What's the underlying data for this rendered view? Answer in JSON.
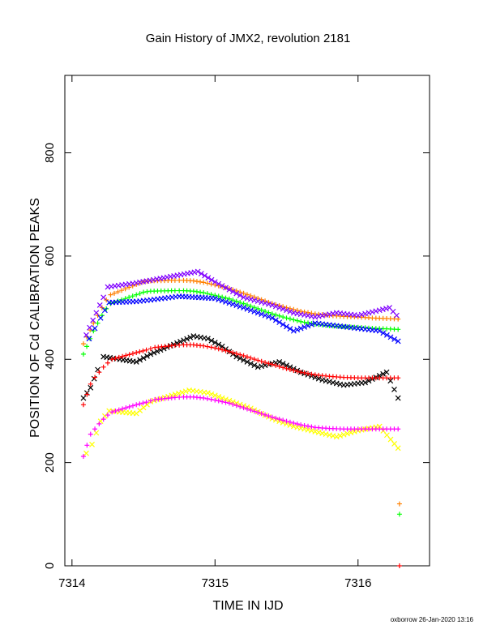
{
  "chart_data": {
    "type": "scatter",
    "title": "Gain History of JMX2, revolution 2181",
    "xlabel": "TIME IN IJD",
    "ylabel": "POSITION OF Cd CALIBRATION PEAKS",
    "xlim": [
      7313.95,
      7316.5
    ],
    "ylim": [
      0,
      950
    ],
    "x_ticks": [
      "7314",
      "7315",
      "7316"
    ],
    "y_ticks": [
      "0",
      "200",
      "400",
      "600",
      "800"
    ],
    "grid": false,
    "footer": "oxborrow 26-Jan-2020 13:16",
    "series": [
      {
        "color": "#ff8000",
        "marker": "plus",
        "points": [
          [
            7314.08,
            430
          ],
          [
            7314.15,
            470
          ],
          [
            7314.18,
            485
          ],
          [
            7314.21,
            500
          ],
          [
            7314.24,
            515
          ],
          [
            7314.27,
            525
          ],
          [
            7314.45,
            545
          ],
          [
            7314.5,
            550
          ],
          [
            7314.55,
            552
          ],
          [
            7314.72,
            553
          ],
          [
            7314.78,
            553
          ],
          [
            7314.85,
            552
          ],
          [
            7314.92,
            549
          ],
          [
            7315.0,
            544
          ],
          [
            7315.1,
            537
          ],
          [
            7315.2,
            528
          ],
          [
            7315.3,
            518
          ],
          [
            7315.4,
            508
          ],
          [
            7315.5,
            500
          ],
          [
            7315.6,
            493
          ],
          [
            7315.7,
            488
          ],
          [
            7315.8,
            485
          ],
          [
            7315.9,
            483
          ],
          [
            7316.0,
            482
          ],
          [
            7316.1,
            480
          ],
          [
            7316.2,
            479
          ],
          [
            7316.28,
            478
          ],
          [
            7316.29,
            120
          ]
        ]
      },
      {
        "color": "#8000ff",
        "marker": "x",
        "points": [
          [
            7314.1,
            447
          ],
          [
            7314.17,
            490
          ],
          [
            7314.22,
            520
          ],
          [
            7314.25,
            540
          ],
          [
            7314.45,
            548
          ],
          [
            7314.88,
            570
          ],
          [
            7315.0,
            550
          ],
          [
            7315.2,
            520
          ],
          [
            7315.4,
            505
          ],
          [
            7315.55,
            490
          ],
          [
            7315.7,
            482
          ],
          [
            7315.85,
            490
          ],
          [
            7316.0,
            485
          ],
          [
            7316.15,
            495
          ],
          [
            7316.22,
            500
          ],
          [
            7316.27,
            485
          ]
        ]
      },
      {
        "color": "#00ff00",
        "marker": "plus",
        "points": [
          [
            7314.08,
            410
          ],
          [
            7314.15,
            455
          ],
          [
            7314.18,
            470
          ],
          [
            7314.21,
            485
          ],
          [
            7314.24,
            498
          ],
          [
            7314.27,
            508
          ],
          [
            7314.45,
            525
          ],
          [
            7314.5,
            530
          ],
          [
            7314.55,
            532
          ],
          [
            7314.72,
            533
          ],
          [
            7314.78,
            533
          ],
          [
            7314.85,
            532
          ],
          [
            7314.92,
            529
          ],
          [
            7315.0,
            524
          ],
          [
            7315.1,
            517
          ],
          [
            7315.2,
            508
          ],
          [
            7315.3,
            498
          ],
          [
            7315.4,
            488
          ],
          [
            7315.5,
            480
          ],
          [
            7315.6,
            473
          ],
          [
            7315.7,
            468
          ],
          [
            7315.8,
            465
          ],
          [
            7315.9,
            463
          ],
          [
            7316.0,
            462
          ],
          [
            7316.1,
            460
          ],
          [
            7316.2,
            459
          ],
          [
            7316.28,
            458
          ],
          [
            7316.29,
            100
          ]
        ]
      },
      {
        "color": "#0000ff",
        "marker": "x",
        "points": [
          [
            7314.12,
            440
          ],
          [
            7314.16,
            460
          ],
          [
            7314.2,
            480
          ],
          [
            7314.26,
            510
          ],
          [
            7314.45,
            512
          ],
          [
            7314.55,
            515
          ],
          [
            7314.75,
            522
          ],
          [
            7315.0,
            518
          ],
          [
            7315.2,
            500
          ],
          [
            7315.4,
            480
          ],
          [
            7315.55,
            455
          ],
          [
            7315.7,
            470
          ],
          [
            7315.85,
            465
          ],
          [
            7316.0,
            460
          ],
          [
            7316.15,
            455
          ],
          [
            7316.28,
            435
          ]
        ]
      },
      {
        "color": "#000000",
        "marker": "x",
        "points": [
          [
            7314.08,
            325
          ],
          [
            7314.13,
            345
          ],
          [
            7314.18,
            380
          ],
          [
            7314.22,
            405
          ],
          [
            7314.45,
            395
          ],
          [
            7314.55,
            410
          ],
          [
            7314.85,
            445
          ],
          [
            7314.95,
            440
          ],
          [
            7315.05,
            425
          ],
          [
            7315.15,
            405
          ],
          [
            7315.3,
            385
          ],
          [
            7315.45,
            395
          ],
          [
            7315.6,
            375
          ],
          [
            7315.75,
            360
          ],
          [
            7315.9,
            350
          ],
          [
            7316.05,
            355
          ],
          [
            7316.2,
            375
          ],
          [
            7316.28,
            325
          ]
        ]
      },
      {
        "color": "#ff0000",
        "marker": "plus",
        "points": [
          [
            7314.08,
            312
          ],
          [
            7314.13,
            352
          ],
          [
            7314.16,
            365
          ],
          [
            7314.19,
            375
          ],
          [
            7314.22,
            385
          ],
          [
            7314.25,
            393
          ],
          [
            7314.28,
            400
          ],
          [
            7314.45,
            413
          ],
          [
            7314.52,
            418
          ],
          [
            7314.58,
            423
          ],
          [
            7314.72,
            427
          ],
          [
            7314.78,
            428
          ],
          [
            7314.85,
            428
          ],
          [
            7314.92,
            426
          ],
          [
            7315.0,
            422
          ],
          [
            7315.1,
            415
          ],
          [
            7315.2,
            407
          ],
          [
            7315.3,
            398
          ],
          [
            7315.4,
            390
          ],
          [
            7315.5,
            382
          ],
          [
            7315.6,
            375
          ],
          [
            7315.7,
            370
          ],
          [
            7315.8,
            367
          ],
          [
            7315.9,
            365
          ],
          [
            7316.0,
            364
          ],
          [
            7316.1,
            364
          ],
          [
            7316.2,
            364
          ],
          [
            7316.28,
            364
          ],
          [
            7316.29,
            0
          ]
        ]
      },
      {
        "color": "#ffff00",
        "marker": "x",
        "points": [
          [
            7314.1,
            218
          ],
          [
            7314.14,
            235
          ],
          [
            7314.2,
            280
          ],
          [
            7314.26,
            300
          ],
          [
            7314.45,
            295
          ],
          [
            7314.55,
            318
          ],
          [
            7314.82,
            340
          ],
          [
            7314.95,
            335
          ],
          [
            7315.1,
            320
          ],
          [
            7315.25,
            305
          ],
          [
            7315.4,
            285
          ],
          [
            7315.55,
            270
          ],
          [
            7315.7,
            260
          ],
          [
            7315.85,
            250
          ],
          [
            7316.0,
            262
          ],
          [
            7316.15,
            270
          ],
          [
            7316.28,
            228
          ]
        ]
      },
      {
        "color": "#ff00ff",
        "marker": "plus",
        "points": [
          [
            7314.08,
            212
          ],
          [
            7314.13,
            255
          ],
          [
            7314.16,
            265
          ],
          [
            7314.19,
            275
          ],
          [
            7314.22,
            284
          ],
          [
            7314.25,
            292
          ],
          [
            7314.28,
            298
          ],
          [
            7314.45,
            312
          ],
          [
            7314.52,
            317
          ],
          [
            7314.58,
            322
          ],
          [
            7314.72,
            326
          ],
          [
            7314.78,
            327
          ],
          [
            7314.85,
            327
          ],
          [
            7314.92,
            325
          ],
          [
            7315.0,
            321
          ],
          [
            7315.1,
            315
          ],
          [
            7315.2,
            306
          ],
          [
            7315.3,
            297
          ],
          [
            7315.4,
            288
          ],
          [
            7315.5,
            280
          ],
          [
            7315.6,
            273
          ],
          [
            7315.7,
            268
          ],
          [
            7315.8,
            266
          ],
          [
            7315.9,
            265
          ],
          [
            7316.0,
            265
          ],
          [
            7316.1,
            265
          ],
          [
            7316.2,
            265
          ],
          [
            7316.28,
            265
          ]
        ]
      }
    ]
  }
}
